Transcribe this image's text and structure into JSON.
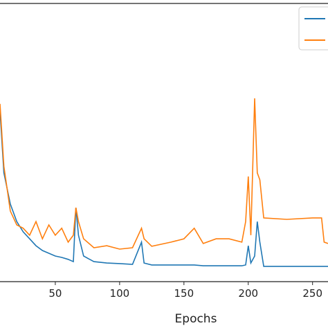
{
  "chart_data": {
    "type": "line",
    "x_label": "Epochs",
    "x": [
      7,
      10,
      15,
      20,
      25,
      30,
      35,
      40,
      45,
      50,
      55,
      60,
      64,
      66,
      68,
      72,
      80,
      90,
      100,
      110,
      117,
      119,
      125,
      140,
      150,
      158,
      165,
      175,
      185,
      195,
      198,
      200,
      202,
      205,
      207,
      209,
      212,
      230,
      250,
      257,
      259,
      262
    ],
    "series": [
      {
        "color": "#1f77b4",
        "values": [
          61.4,
          39.1,
          27.9,
          21.6,
          17.9,
          15.4,
          12.9,
          11.2,
          10.2,
          9.2,
          8.7,
          8.0,
          7.2,
          26.6,
          16.7,
          9.2,
          7.2,
          6.7,
          6.5,
          6.2,
          14.2,
          6.7,
          6.0,
          6.0,
          6.0,
          6.0,
          5.7,
          5.7,
          5.7,
          5.7,
          6.0,
          12.9,
          6.7,
          9.2,
          21.6,
          14.2,
          5.5,
          5.5,
          5.5,
          5.5,
          5.5,
          5.5
        ]
      },
      {
        "color": "#ff7f0e",
        "values": [
          63.9,
          41.5,
          25.4,
          20.4,
          19.2,
          16.7,
          21.6,
          15.4,
          20.4,
          16.7,
          19.2,
          14.2,
          16.7,
          26.6,
          21.6,
          15.4,
          12.2,
          12.9,
          11.7,
          12.2,
          19.2,
          15.4,
          12.7,
          14.2,
          15.4,
          19.2,
          13.7,
          15.4,
          15.4,
          14.2,
          21.6,
          37.8,
          16.7,
          65.9,
          39.1,
          36.6,
          22.9,
          22.4,
          22.9,
          22.9,
          14.2,
          13.7
        ]
      }
    ],
    "xlim": [
      7,
      262
    ],
    "ylim": [
      0,
      100
    ],
    "xticks": [
      50,
      100,
      150,
      200,
      250
    ]
  }
}
